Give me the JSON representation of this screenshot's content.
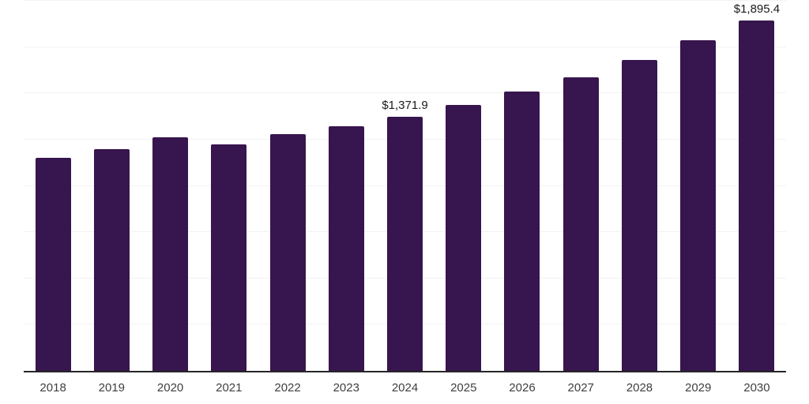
{
  "chart": {
    "background": "#ffffff",
    "bar_color": "#37154e",
    "axis_line_color": "#262626",
    "gridline_color": "#f2f2f2",
    "data_label_color": "#1a1a1a",
    "tick_label_color": "#3f3f3f"
  },
  "chart_data": {
    "type": "bar",
    "title": "",
    "xlabel": "",
    "ylabel": "",
    "categories": [
      "2018",
      "2019",
      "2020",
      "2021",
      "2022",
      "2023",
      "2024",
      "2025",
      "2026",
      "2027",
      "2028",
      "2029",
      "2030"
    ],
    "values": [
      1151.6,
      1198.6,
      1262.6,
      1224.2,
      1278.1,
      1322.4,
      1371.9,
      1436.4,
      1509.0,
      1587.2,
      1682.4,
      1784.9,
      1895.4
    ],
    "data_labels": {
      "2024": "$1,371.9",
      "2030": "$1,895.4"
    },
    "ylim": [
      0,
      2000
    ],
    "gridline_step": 250,
    "grid": true,
    "legend": false,
    "y_axis_labels_visible": false
  }
}
